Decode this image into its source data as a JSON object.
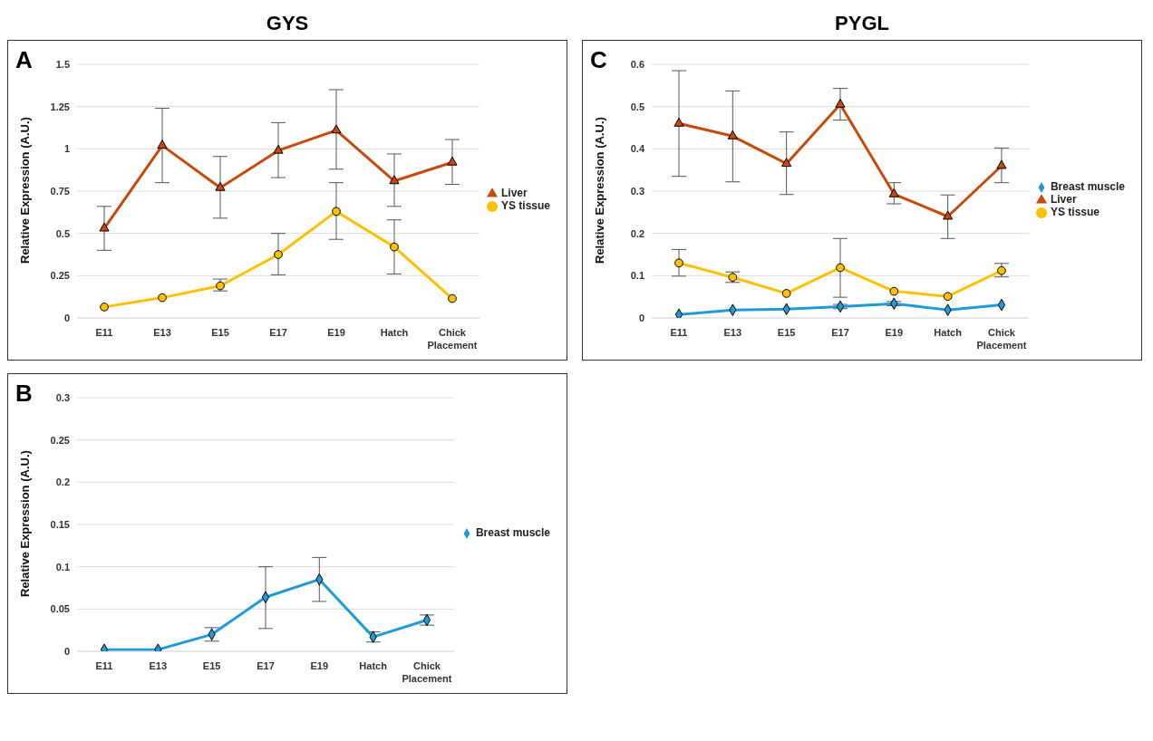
{
  "chart_data": [
    {
      "type": "line",
      "title": "GYS",
      "annotations": [
        "A"
      ],
      "ylabel": "Relative Expression (A.U.)",
      "categories": [
        "E11",
        "E13",
        "E15",
        "E17",
        "E19",
        "Hatch",
        "Chick Placement"
      ],
      "series": [
        {
          "name": "Liver",
          "color": "#c9480c",
          "marker": "triangle",
          "values": [
            0.53,
            1.02,
            0.77,
            0.99,
            1.11,
            0.81,
            0.92
          ],
          "errors": [
            [
              0.4,
              0.66
            ],
            [
              0.8,
              1.24
            ],
            [
              0.59,
              0.955
            ],
            [
              0.83,
              1.155
            ],
            [
              0.88,
              1.35
            ],
            [
              0.66,
              0.97
            ],
            [
              0.79,
              1.055
            ]
          ]
        },
        {
          "name": "YS tissue",
          "color": "#ffc000",
          "marker": "circle",
          "values": [
            0.065,
            0.12,
            0.19,
            0.375,
            0.63,
            0.42,
            0.115
          ],
          "errors": [
            null,
            null,
            [
              0.16,
              0.23
            ],
            [
              0.255,
              0.5
            ],
            [
              0.465,
              0.8
            ],
            [
              0.26,
              0.58
            ],
            null
          ]
        }
      ],
      "ylim": [
        0,
        1.5
      ],
      "yticks": [
        0,
        0.25,
        0.5,
        0.75,
        1,
        1.25,
        1.5
      ],
      "grid": "y",
      "legend": "right"
    },
    {
      "type": "line",
      "title": "PYGL",
      "annotations": [
        "C"
      ],
      "ylabel": "Relative Expression (A.U.)",
      "categories": [
        "E11",
        "E13",
        "E15",
        "E17",
        "E19",
        "Hatch",
        "Chick Placement"
      ],
      "series": [
        {
          "name": "Breast muscle",
          "color": "#1f9bd7",
          "marker": "diamond",
          "values": [
            0.008,
            0.019,
            0.021,
            0.027,
            0.034,
            0.019,
            0.031
          ],
          "errors": [
            null,
            null,
            null,
            [
              0.022,
              0.032
            ],
            [
              0.029,
              0.039
            ],
            null,
            null
          ]
        },
        {
          "name": "Liver",
          "color": "#c9480c",
          "marker": "triangle",
          "values": [
            0.46,
            0.43,
            0.365,
            0.505,
            0.293,
            0.24,
            0.36
          ],
          "errors": [
            [
              0.335,
              0.585
            ],
            [
              0.322,
              0.537
            ],
            [
              0.292,
              0.44
            ],
            [
              0.468,
              0.543
            ],
            [
              0.27,
              0.32
            ],
            [
              0.188,
              0.291
            ],
            [
              0.32,
              0.402
            ]
          ]
        },
        {
          "name": "YS tissue",
          "color": "#ffc000",
          "marker": "circle",
          "values": [
            0.13,
            0.096,
            0.058,
            0.119,
            0.063,
            0.051,
            0.112
          ],
          "errors": [
            [
              0.099,
              0.162
            ],
            [
              0.084,
              0.109
            ],
            null,
            [
              0.049,
              0.188
            ],
            null,
            null,
            [
              0.097,
              0.129
            ]
          ]
        }
      ],
      "ylim": [
        0,
        0.6
      ],
      "yticks": [
        0,
        0.1,
        0.2,
        0.3,
        0.4,
        0.5,
        0.6
      ],
      "grid": "y",
      "legend": "right"
    },
    {
      "type": "line",
      "annotations": [
        "B"
      ],
      "ylabel": "Relative Expression (A.U.)",
      "categories": [
        "E11",
        "E13",
        "E15",
        "E17",
        "E19",
        "Hatch",
        "Chick Placement"
      ],
      "series": [
        {
          "name": "Breast muscle",
          "color": "#1f9bd7",
          "marker": "diamond",
          "values": [
            0.002,
            0.002,
            0.02,
            0.064,
            0.085,
            0.017,
            0.037
          ],
          "errors": [
            null,
            null,
            [
              0.012,
              0.028
            ],
            [
              0.027,
              0.1
            ],
            [
              0.059,
              0.111
            ],
            [
              0.011,
              0.023
            ],
            [
              0.031,
              0.043
            ]
          ]
        }
      ],
      "ylim": [
        0,
        0.3
      ],
      "yticks": [
        0,
        0.05,
        0.1,
        0.15,
        0.2,
        0.25,
        0.3
      ],
      "grid": "y",
      "legend": "right"
    }
  ]
}
